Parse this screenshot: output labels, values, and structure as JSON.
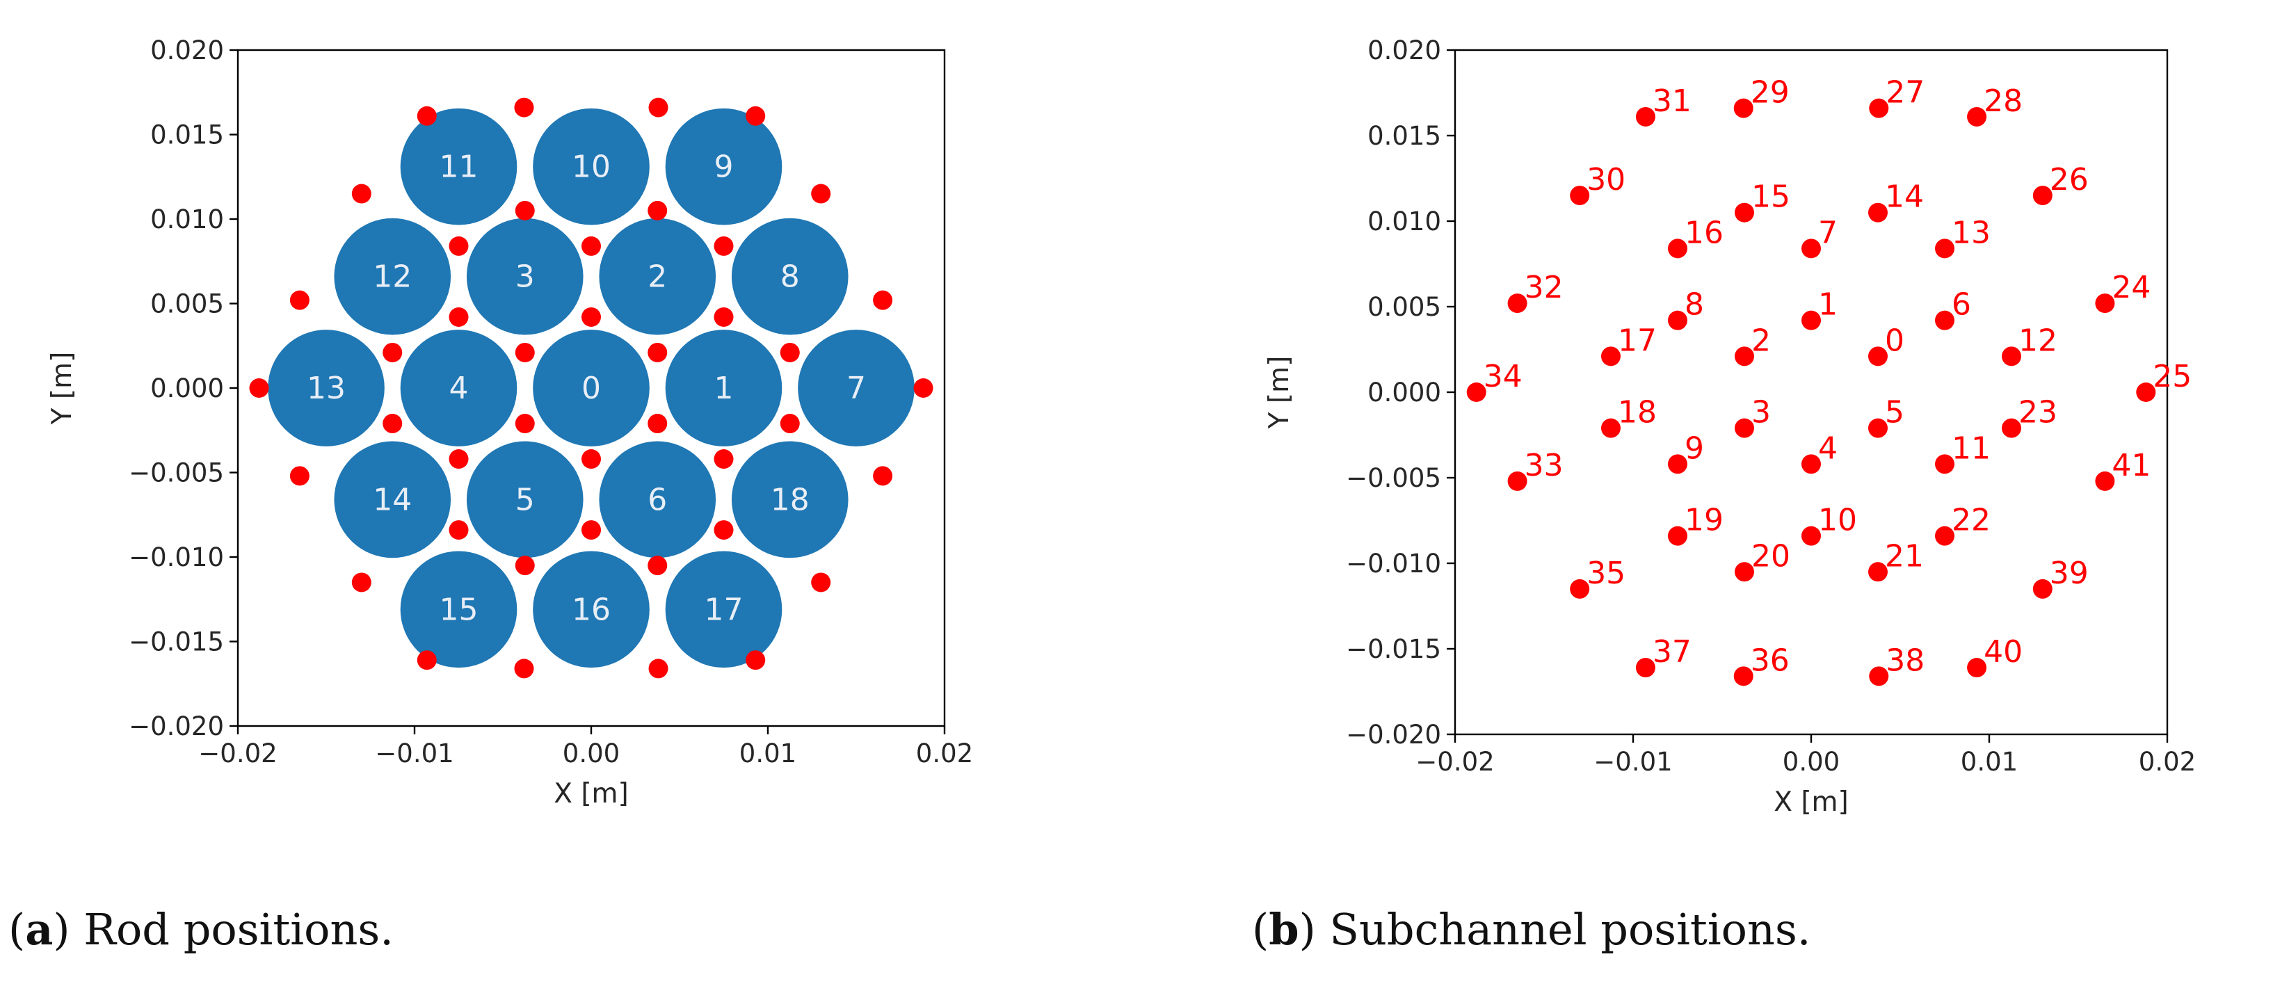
{
  "colors": {
    "rod": "#1f77b4",
    "subchannel": "#ff0000",
    "rod_label": "#e8eef6"
  },
  "captions": {
    "a": {
      "tag": "a",
      "text": " Rod positions."
    },
    "b": {
      "tag": "b",
      "text": " Subchannel positions."
    }
  },
  "chart_data": [
    {
      "id": "a",
      "type": "scatter",
      "title": "Rod positions",
      "xlabel": "X [m]",
      "ylabel": "Y [m]",
      "xlim": [
        -0.02,
        0.02
      ],
      "ylim": [
        -0.02,
        0.02
      ],
      "xticks": [
        -0.02,
        -0.01,
        0.0,
        0.01,
        0.02
      ],
      "xtick_labels": [
        "−0.02",
        "−0.01",
        "0.00",
        "0.01",
        "0.02"
      ],
      "yticks": [
        0.02,
        0.015,
        0.01,
        0.005,
        0.0,
        -0.005,
        -0.01,
        -0.015,
        -0.02
      ],
      "ytick_labels": [
        "0.020",
        "0.015",
        "0.010",
        "0.005",
        "0.000",
        "−0.005",
        "−0.010",
        "−0.015",
        "−0.020"
      ],
      "grid": false,
      "rod_radius": 0.0033,
      "rods": [
        {
          "id": "0",
          "x": 0.0,
          "y": 0.0
        },
        {
          "id": "1",
          "x": 0.0075,
          "y": 0.0
        },
        {
          "id": "2",
          "x": 0.00375,
          "y": 0.0066
        },
        {
          "id": "3",
          "x": -0.00375,
          "y": 0.0066
        },
        {
          "id": "4",
          "x": -0.0075,
          "y": 0.0
        },
        {
          "id": "5",
          "x": -0.00375,
          "y": -0.0066
        },
        {
          "id": "6",
          "x": 0.00375,
          "y": -0.0066
        },
        {
          "id": "7",
          "x": 0.015,
          "y": 0.0
        },
        {
          "id": "8",
          "x": 0.01125,
          "y": 0.0066
        },
        {
          "id": "9",
          "x": 0.0075,
          "y": 0.0131
        },
        {
          "id": "10",
          "x": 0.0,
          "y": 0.0131
        },
        {
          "id": "11",
          "x": -0.0075,
          "y": 0.0131
        },
        {
          "id": "12",
          "x": -0.01125,
          "y": 0.0066
        },
        {
          "id": "13",
          "x": -0.015,
          "y": 0.0
        },
        {
          "id": "14",
          "x": -0.01125,
          "y": -0.0066
        },
        {
          "id": "15",
          "x": -0.0075,
          "y": -0.0131
        },
        {
          "id": "16",
          "x": 0.0,
          "y": -0.0131
        },
        {
          "id": "17",
          "x": 0.0075,
          "y": -0.0131
        },
        {
          "id": "18",
          "x": 0.01125,
          "y": -0.0066
        }
      ],
      "subchannels": [
        {
          "x": 0.00375,
          "y": 0.0021
        },
        {
          "x": 0.0,
          "y": 0.0042
        },
        {
          "x": -0.00375,
          "y": 0.0021
        },
        {
          "x": -0.00375,
          "y": -0.0021
        },
        {
          "x": 0.0,
          "y": -0.0042
        },
        {
          "x": 0.00375,
          "y": -0.0021
        },
        {
          "x": 0.0075,
          "y": 0.0042
        },
        {
          "x": 0.0,
          "y": 0.0084
        },
        {
          "x": -0.0075,
          "y": 0.0042
        },
        {
          "x": -0.0075,
          "y": -0.0042
        },
        {
          "x": 0.0,
          "y": -0.0084
        },
        {
          "x": 0.0075,
          "y": -0.0042
        },
        {
          "x": 0.01125,
          "y": 0.0021
        },
        {
          "x": 0.0075,
          "y": 0.0084
        },
        {
          "x": 0.00375,
          "y": 0.0105
        },
        {
          "x": -0.00375,
          "y": 0.0105
        },
        {
          "x": -0.0075,
          "y": 0.0084
        },
        {
          "x": -0.01125,
          "y": 0.0021
        },
        {
          "x": -0.01125,
          "y": -0.0021
        },
        {
          "x": -0.0075,
          "y": -0.0084
        },
        {
          "x": -0.00375,
          "y": -0.0105
        },
        {
          "x": 0.00375,
          "y": -0.0105
        },
        {
          "x": 0.0075,
          "y": -0.0084
        },
        {
          "x": 0.01125,
          "y": -0.0021
        },
        {
          "x": 0.0165,
          "y": 0.0052
        },
        {
          "x": 0.0188,
          "y": 0.0
        },
        {
          "x": 0.013,
          "y": 0.0115
        },
        {
          "x": 0.0038,
          "y": 0.0166
        },
        {
          "x": 0.0093,
          "y": 0.0161
        },
        {
          "x": -0.0038,
          "y": 0.0166
        },
        {
          "x": -0.013,
          "y": 0.0115
        },
        {
          "x": -0.0093,
          "y": 0.0161
        },
        {
          "x": -0.0165,
          "y": 0.0052
        },
        {
          "x": -0.0165,
          "y": -0.0052
        },
        {
          "x": -0.0188,
          "y": 0.0
        },
        {
          "x": -0.013,
          "y": -0.0115
        },
        {
          "x": -0.0038,
          "y": -0.0166
        },
        {
          "x": -0.0093,
          "y": -0.0161
        },
        {
          "x": 0.0038,
          "y": -0.0166
        },
        {
          "x": 0.013,
          "y": -0.0115
        },
        {
          "x": 0.0093,
          "y": -0.0161
        },
        {
          "x": 0.0165,
          "y": -0.0052
        }
      ]
    },
    {
      "id": "b",
      "type": "scatter",
      "title": "Subchannel positions",
      "xlabel": "X [m]",
      "ylabel": "Y [m]",
      "xlim": [
        -0.02,
        0.02
      ],
      "ylim": [
        -0.02,
        0.02
      ],
      "xticks": [
        -0.02,
        -0.01,
        0.0,
        0.01,
        0.02
      ],
      "xtick_labels": [
        "−0.02",
        "−0.01",
        "0.00",
        "0.01",
        "0.02"
      ],
      "yticks": [
        0.02,
        0.015,
        0.01,
        0.005,
        0.0,
        -0.005,
        -0.01,
        -0.015,
        -0.02
      ],
      "ytick_labels": [
        "0.020",
        "0.015",
        "0.010",
        "0.005",
        "0.000",
        "−0.005",
        "−0.010",
        "−0.015",
        "−0.020"
      ],
      "grid": false,
      "subchannels": [
        {
          "id": "0",
          "x": 0.00375,
          "y": 0.0021
        },
        {
          "id": "1",
          "x": 0.0,
          "y": 0.0042
        },
        {
          "id": "2",
          "x": -0.00375,
          "y": 0.0021
        },
        {
          "id": "3",
          "x": -0.00375,
          "y": -0.0021
        },
        {
          "id": "4",
          "x": 0.0,
          "y": -0.0042
        },
        {
          "id": "5",
          "x": 0.00375,
          "y": -0.0021
        },
        {
          "id": "6",
          "x": 0.0075,
          "y": 0.0042
        },
        {
          "id": "7",
          "x": 0.0,
          "y": 0.0084
        },
        {
          "id": "8",
          "x": -0.0075,
          "y": 0.0042
        },
        {
          "id": "9",
          "x": -0.0075,
          "y": -0.0042
        },
        {
          "id": "10",
          "x": 0.0,
          "y": -0.0084
        },
        {
          "id": "11",
          "x": 0.0075,
          "y": -0.0042
        },
        {
          "id": "12",
          "x": 0.01125,
          "y": 0.0021
        },
        {
          "id": "13",
          "x": 0.0075,
          "y": 0.0084
        },
        {
          "id": "14",
          "x": 0.00375,
          "y": 0.0105
        },
        {
          "id": "15",
          "x": -0.00375,
          "y": 0.0105
        },
        {
          "id": "16",
          "x": -0.0075,
          "y": 0.0084
        },
        {
          "id": "17",
          "x": -0.01125,
          "y": 0.0021
        },
        {
          "id": "18",
          "x": -0.01125,
          "y": -0.0021
        },
        {
          "id": "19",
          "x": -0.0075,
          "y": -0.0084
        },
        {
          "id": "20",
          "x": -0.00375,
          "y": -0.0105
        },
        {
          "id": "21",
          "x": 0.00375,
          "y": -0.0105
        },
        {
          "id": "22",
          "x": 0.0075,
          "y": -0.0084
        },
        {
          "id": "23",
          "x": 0.01125,
          "y": -0.0021
        },
        {
          "id": "24",
          "x": 0.0165,
          "y": 0.0052
        },
        {
          "id": "25",
          "x": 0.0188,
          "y": 0.0
        },
        {
          "id": "26",
          "x": 0.013,
          "y": 0.0115
        },
        {
          "id": "27",
          "x": 0.0038,
          "y": 0.0166
        },
        {
          "id": "28",
          "x": 0.0093,
          "y": 0.0161
        },
        {
          "id": "29",
          "x": -0.0038,
          "y": 0.0166
        },
        {
          "id": "30",
          "x": -0.013,
          "y": 0.0115
        },
        {
          "id": "31",
          "x": -0.0093,
          "y": 0.0161
        },
        {
          "id": "32",
          "x": -0.0165,
          "y": 0.0052
        },
        {
          "id": "33",
          "x": -0.0165,
          "y": -0.0052
        },
        {
          "id": "34",
          "x": -0.0188,
          "y": 0.0
        },
        {
          "id": "35",
          "x": -0.013,
          "y": -0.0115
        },
        {
          "id": "36",
          "x": -0.0038,
          "y": -0.0166
        },
        {
          "id": "37",
          "x": -0.0093,
          "y": -0.0161
        },
        {
          "id": "38",
          "x": 0.0038,
          "y": -0.0166
        },
        {
          "id": "39",
          "x": 0.013,
          "y": -0.0115
        },
        {
          "id": "40",
          "x": 0.0093,
          "y": -0.0161
        },
        {
          "id": "41",
          "x": 0.0165,
          "y": -0.0052
        }
      ]
    }
  ]
}
